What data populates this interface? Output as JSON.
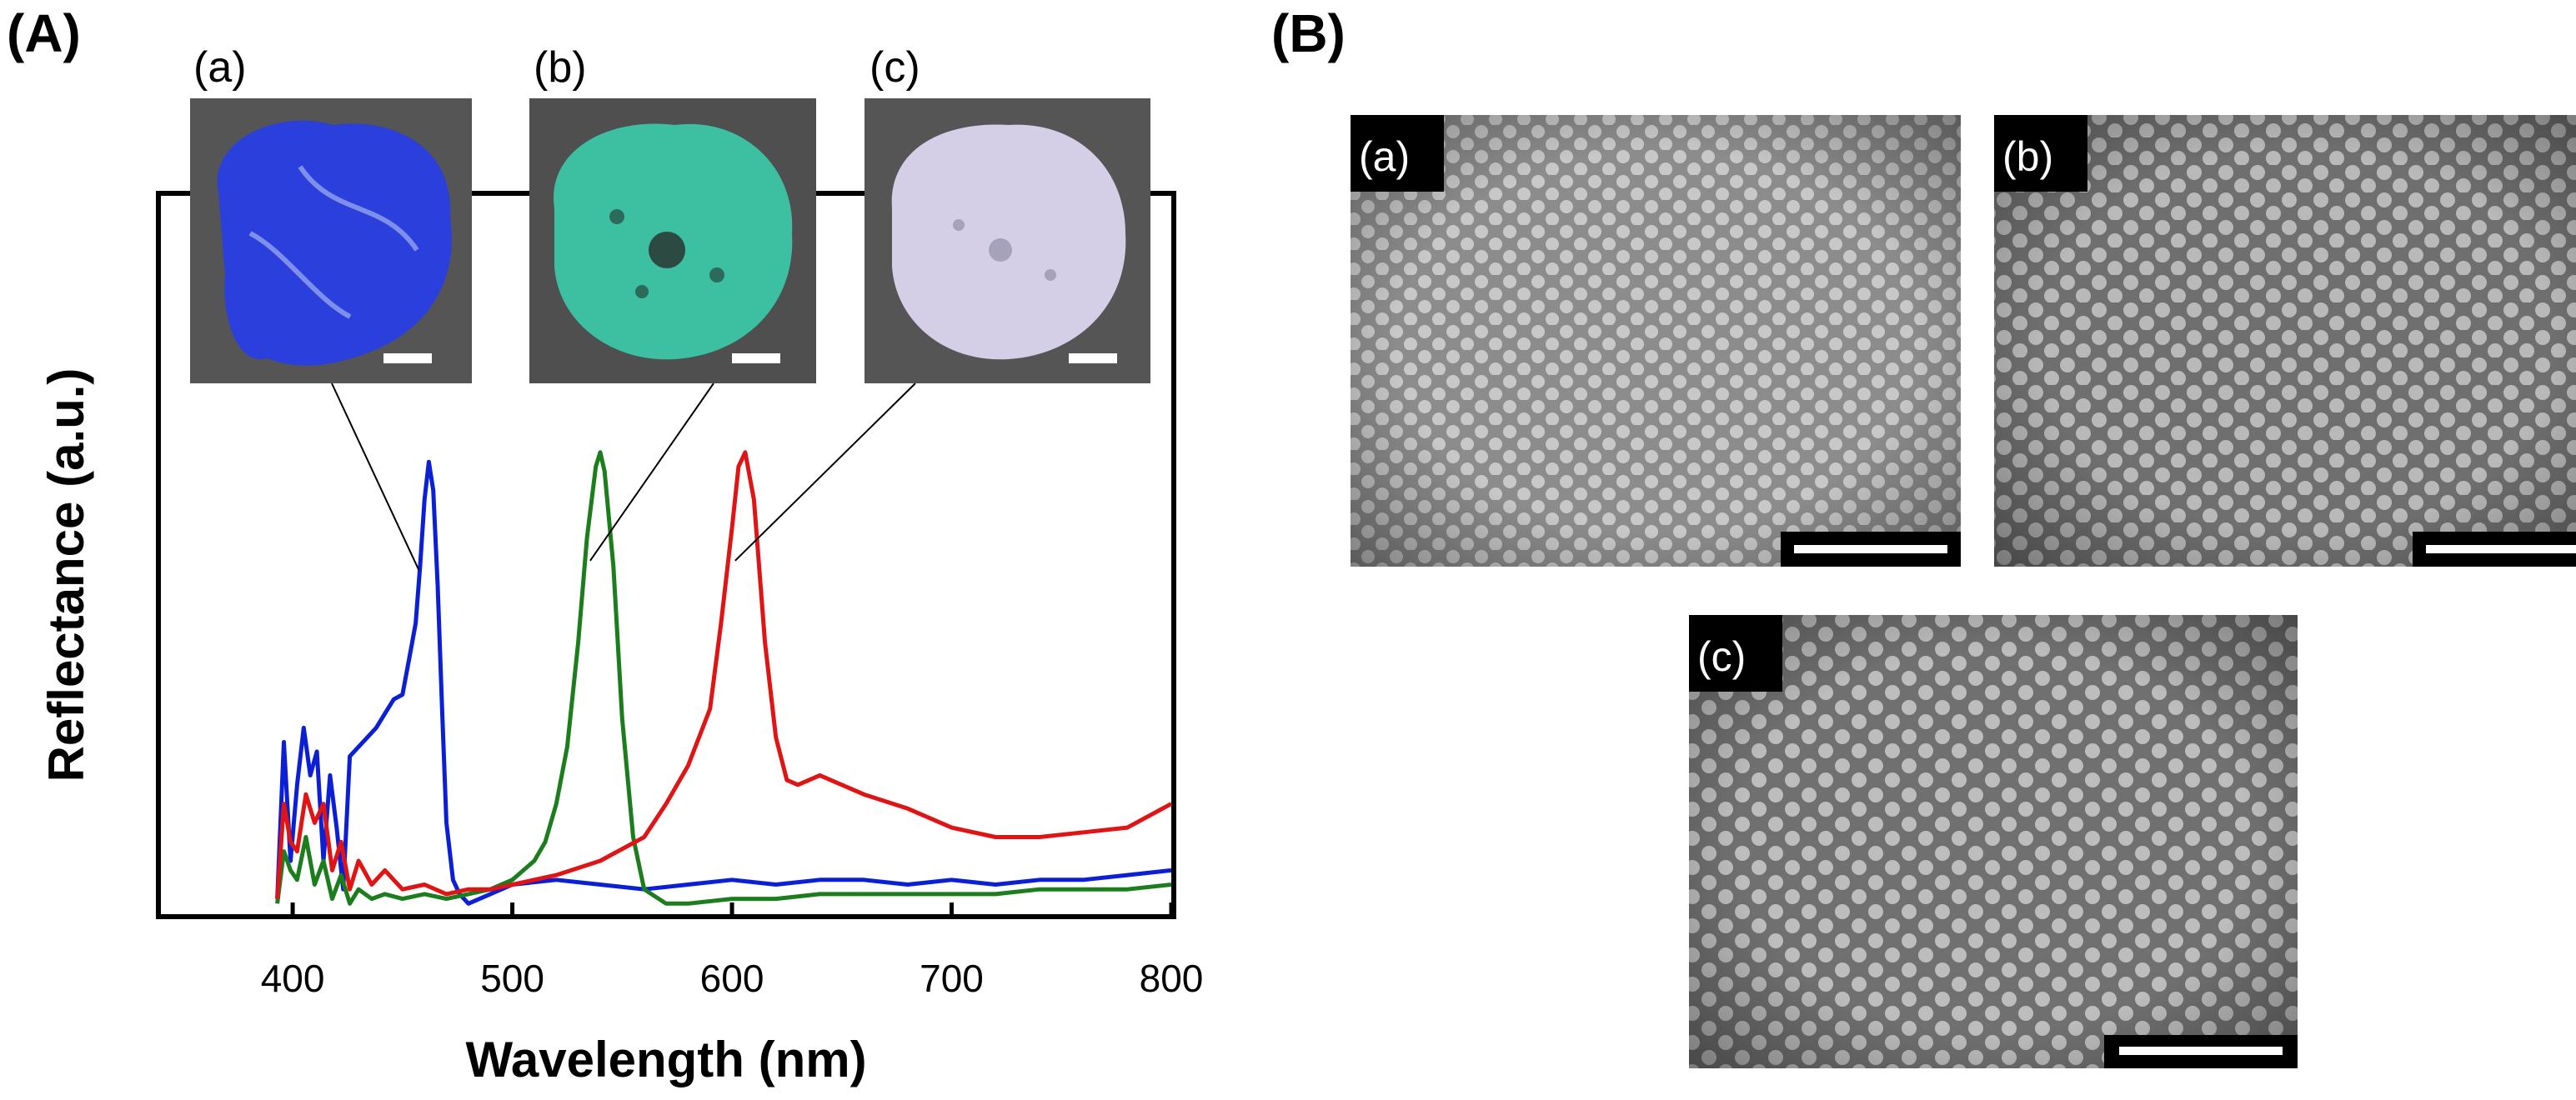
{
  "panels": {
    "A": "(A)",
    "B": "(B)"
  },
  "chart_data": {
    "type": "line",
    "title": "",
    "xlabel": "Wavelength (nm)",
    "ylabel": "Reflectance (a.u.)",
    "xlim": [
      340,
      800
    ],
    "ylim": [
      0,
      1
    ],
    "xticks": [
      "400",
      "500",
      "600",
      "700",
      "800"
    ],
    "y_ticks_labeled": false,
    "grid": false,
    "series": [
      {
        "name": "(a)",
        "color": "#0b1fd6",
        "x": [
          393,
          396,
          399,
          402,
          405,
          408,
          411,
          414,
          417,
          420,
          423,
          426,
          430,
          434,
          438,
          442,
          446,
          450,
          452,
          454,
          456,
          458,
          460,
          462,
          464,
          466,
          468,
          470,
          473,
          476,
          480,
          490,
          500,
          520,
          540,
          560,
          580,
          600,
          620,
          640,
          660,
          680,
          700,
          720,
          740,
          760,
          780,
          800
        ],
        "y": [
          0.02,
          0.35,
          0.1,
          0.26,
          0.38,
          0.28,
          0.33,
          0.1,
          0.28,
          0.17,
          0.04,
          0.32,
          0.34,
          0.36,
          0.38,
          0.41,
          0.44,
          0.45,
          0.5,
          0.55,
          0.6,
          0.72,
          0.86,
          0.94,
          0.88,
          0.68,
          0.42,
          0.18,
          0.06,
          0.03,
          0.01,
          0.03,
          0.05,
          0.06,
          0.05,
          0.04,
          0.05,
          0.06,
          0.05,
          0.06,
          0.06,
          0.05,
          0.06,
          0.05,
          0.06,
          0.06,
          0.07,
          0.08
        ]
      },
      {
        "name": "(b)",
        "color": "#1b7d1b",
        "x": [
          393,
          396,
          399,
          402,
          406,
          410,
          414,
          418,
          422,
          426,
          430,
          436,
          442,
          450,
          460,
          470,
          480,
          490,
          500,
          510,
          515,
          520,
          525,
          530,
          534,
          538,
          540,
          542,
          546,
          550,
          555,
          560,
          570,
          580,
          600,
          620,
          640,
          660,
          680,
          700,
          720,
          740,
          760,
          780,
          800
        ],
        "y": [
          0.01,
          0.12,
          0.08,
          0.06,
          0.15,
          0.05,
          0.1,
          0.02,
          0.07,
          0.01,
          0.04,
          0.02,
          0.03,
          0.02,
          0.03,
          0.02,
          0.03,
          0.04,
          0.06,
          0.1,
          0.14,
          0.22,
          0.34,
          0.56,
          0.78,
          0.93,
          0.96,
          0.92,
          0.72,
          0.4,
          0.15,
          0.04,
          0.01,
          0.01,
          0.02,
          0.02,
          0.03,
          0.03,
          0.03,
          0.03,
          0.03,
          0.04,
          0.04,
          0.04,
          0.05
        ]
      },
      {
        "name": "(c)",
        "color": "#e01414",
        "x": [
          393,
          396,
          399,
          402,
          406,
          410,
          414,
          418,
          422,
          426,
          430,
          436,
          442,
          450,
          460,
          470,
          480,
          490,
          500,
          520,
          540,
          560,
          570,
          580,
          590,
          595,
          600,
          603,
          606,
          610,
          615,
          620,
          625,
          630,
          640,
          660,
          680,
          700,
          720,
          740,
          760,
          780,
          800
        ],
        "y": [
          0.02,
          0.22,
          0.14,
          0.12,
          0.24,
          0.18,
          0.22,
          0.08,
          0.14,
          0.04,
          0.1,
          0.05,
          0.08,
          0.04,
          0.05,
          0.03,
          0.04,
          0.04,
          0.05,
          0.07,
          0.1,
          0.15,
          0.22,
          0.3,
          0.42,
          0.6,
          0.8,
          0.93,
          0.96,
          0.86,
          0.56,
          0.36,
          0.27,
          0.26,
          0.28,
          0.24,
          0.21,
          0.17,
          0.15,
          0.15,
          0.16,
          0.17,
          0.22
        ]
      }
    ],
    "insets": [
      {
        "label": "(a)",
        "color": "#2a3fdc",
        "points_to_series": "(a)"
      },
      {
        "label": "(b)",
        "color": "#3dbfa2",
        "points_to_series": "(b)"
      },
      {
        "label": "(c)",
        "color": "#d4cfe6",
        "points_to_series": "(c)"
      }
    ]
  },
  "sem_images": [
    {
      "label": "(a)"
    },
    {
      "label": "(b)"
    },
    {
      "label": "(c)"
    }
  ]
}
